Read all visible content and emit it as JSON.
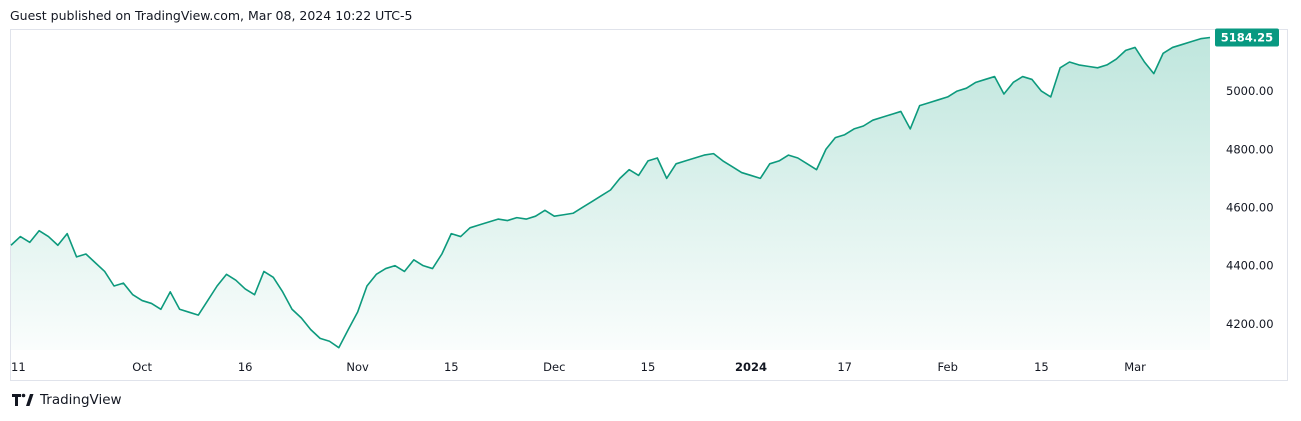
{
  "header": {
    "text": "Guest published on TradingView.com, Mar 08, 2024 10:22 UTC-5"
  },
  "footer": {
    "brand": "TradingView",
    "logo_icon": "tradingview-logo-icon"
  },
  "colors": {
    "line": "#0d9a7d",
    "label_bg": "#089981",
    "fill_top": "#bfe6dd",
    "border": "#e0e3eb"
  },
  "chart_data": {
    "type": "area",
    "last_price_label": "5184.25",
    "y_ticks": [
      "4200.00",
      "4400.00",
      "4600.00",
      "4800.00",
      "5000.00"
    ],
    "y_range": [
      4110,
      5210
    ],
    "x_ticks": [
      {
        "label": "11",
        "index": 0
      },
      {
        "label": "Oct",
        "index": 14
      },
      {
        "label": "16",
        "index": 25
      },
      {
        "label": "Nov",
        "index": 37
      },
      {
        "label": "15",
        "index": 47
      },
      {
        "label": "Dec",
        "index": 58
      },
      {
        "label": "15",
        "index": 68
      },
      {
        "label": "2024",
        "index": 79,
        "bold": true
      },
      {
        "label": "17",
        "index": 89
      },
      {
        "label": "Feb",
        "index": 100
      },
      {
        "label": "15",
        "index": 110
      },
      {
        "label": "Mar",
        "index": 120
      }
    ],
    "x_count": 129,
    "values": [
      4470,
      4500,
      4480,
      4520,
      4500,
      4470,
      4510,
      4430,
      4440,
      4410,
      4380,
      4330,
      4340,
      4300,
      4280,
      4270,
      4250,
      4310,
      4250,
      4240,
      4230,
      4280,
      4330,
      4370,
      4350,
      4320,
      4300,
      4380,
      4360,
      4310,
      4250,
      4220,
      4180,
      4150,
      4140,
      4118,
      4180,
      4240,
      4330,
      4370,
      4390,
      4400,
      4380,
      4420,
      4400,
      4390,
      4440,
      4510,
      4500,
      4530,
      4540,
      4550,
      4560,
      4555,
      4565,
      4560,
      4570,
      4590,
      4570,
      4575,
      4580,
      4600,
      4620,
      4640,
      4660,
      4700,
      4730,
      4710,
      4760,
      4770,
      4700,
      4750,
      4760,
      4770,
      4780,
      4785,
      4760,
      4740,
      4720,
      4710,
      4700,
      4750,
      4760,
      4780,
      4770,
      4750,
      4730,
      4800,
      4840,
      4850,
      4870,
      4880,
      4900,
      4910,
      4920,
      4930,
      4870,
      4950,
      4960,
      4970,
      4980,
      5000,
      5010,
      5030,
      5040,
      5050,
      4990,
      5030,
      5050,
      5040,
      5000,
      4980,
      5080,
      5100,
      5090,
      5085,
      5080,
      5090,
      5110,
      5140,
      5150,
      5100,
      5060,
      5130,
      5150,
      5160,
      5170,
      5180,
      5184.25
    ]
  }
}
